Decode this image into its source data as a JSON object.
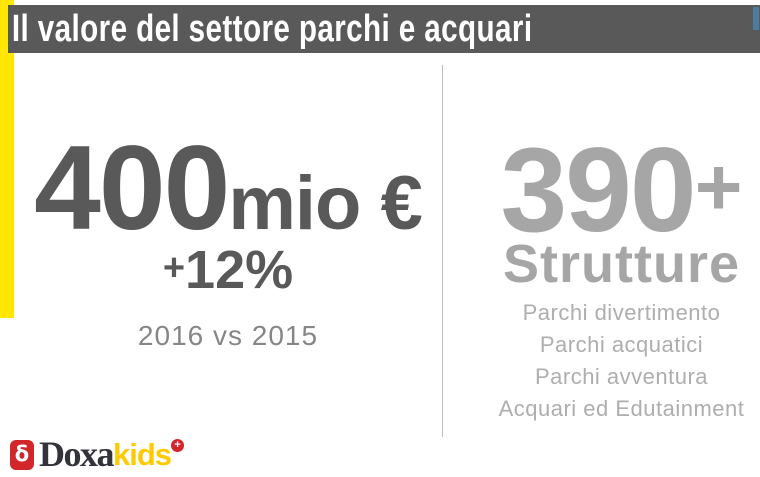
{
  "header": {
    "title": "Il valore del settore parchi e acquari"
  },
  "left_panel": {
    "value_number": "400",
    "value_unit": "mio €",
    "growth_sign": "+",
    "growth_value": "12%",
    "comparison": "2016 vs 2015"
  },
  "right_panel": {
    "count_number": "390",
    "count_suffix": "+",
    "label": "Strutture",
    "items": [
      "Parchi divertimento",
      "Parchi acquatici",
      "Parchi avventura",
      "Acquari ed Edutainment"
    ]
  },
  "footer": {
    "brand_primary": "Doxa",
    "brand_secondary": "kids",
    "plus_badge": "+",
    "logo_icon_glyph": "δ"
  },
  "colors": {
    "accent_yellow": "#ffe603",
    "header_gray": "#595959",
    "dark_text": "#595959",
    "muted_text": "#868686",
    "light_text": "#a6a6a6",
    "divider_gray": "#bdbdbd",
    "brand_red": "#d2262b",
    "brand_gold": "#ffcb00",
    "scroll_blue": "#4e7b9e"
  }
}
